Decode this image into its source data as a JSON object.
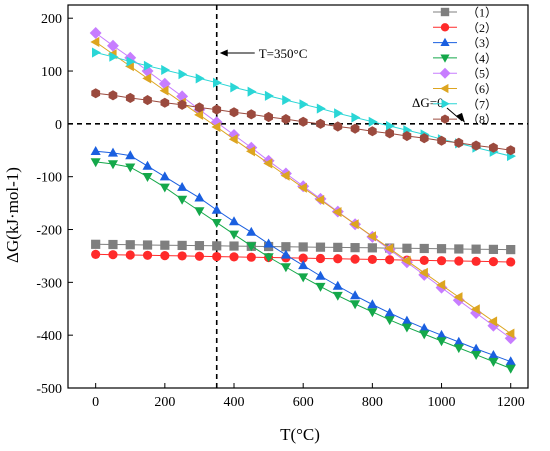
{
  "chart_data": {
    "type": "line",
    "xlabel": "T(°C)",
    "ylabel": "ΔG(kJ·mol-1)",
    "xlim": [
      -80,
      1250
    ],
    "ylim": [
      -500,
      225
    ],
    "xticks": [
      0,
      200,
      400,
      600,
      800,
      1000,
      1200
    ],
    "yticks": [
      -500,
      -400,
      -300,
      -200,
      -100,
      0,
      100,
      200
    ],
    "markers_x": [
      0,
      50,
      100,
      150,
      200,
      250,
      300,
      350,
      400,
      450,
      500,
      550,
      600,
      650,
      700,
      750,
      800,
      850,
      900,
      950,
      1000,
      1050,
      1100,
      1150,
      1200
    ],
    "reference_lines": [
      {
        "axis": "x",
        "value": 350,
        "label": "T=350°C",
        "style": "dashed"
      },
      {
        "axis": "y",
        "value": 0,
        "label": "ΔG=0",
        "style": "dashed"
      }
    ],
    "legend_position": "top-right",
    "series": [
      {
        "name": "（1）",
        "color": "#7f7f7f",
        "marker": "square",
        "values": [
          -228,
          -228.4,
          -228.8,
          -229.3,
          -229.7,
          -230.1,
          -230.5,
          -230.9,
          -231.3,
          -231.8,
          -232.2,
          -232.6,
          -233,
          -233.4,
          -233.8,
          -234.3,
          -234.7,
          -235.1,
          -235.5,
          -235.9,
          -236.3,
          -236.8,
          -237.2,
          -237.6,
          -238
        ]
      },
      {
        "name": "（2）",
        "color": "#ff2a2a",
        "marker": "circle",
        "values": [
          -247,
          -247.6,
          -248.2,
          -248.8,
          -249.4,
          -250,
          -250.6,
          -251.2,
          -251.8,
          -252.4,
          -253,
          -253.6,
          -254.2,
          -254.8,
          -255.4,
          -256,
          -256.6,
          -257.2,
          -257.8,
          -258.4,
          -259,
          -259.6,
          -260.2,
          -260.8,
          -261.4
        ]
      },
      {
        "name": "（3）",
        "color": "#1a5fe0",
        "marker": "triangle-up",
        "values": [
          -52,
          -55,
          -60,
          -80,
          -100,
          -120,
          -140,
          -163,
          -185,
          -205,
          -227,
          -248,
          -268,
          -288,
          -307,
          -325,
          -342,
          -358,
          -373,
          -387,
          -400,
          -413,
          -426,
          -438,
          -450
        ]
      },
      {
        "name": "（4）",
        "color": "#14a84a",
        "marker": "triangle-down",
        "values": [
          -72,
          -76,
          -82,
          -100,
          -120,
          -143,
          -165,
          -187,
          -209,
          -231,
          -252,
          -271,
          -290,
          -308,
          -325,
          -341,
          -356,
          -371,
          -385,
          -398,
          -411,
          -424,
          -437,
          -450,
          -463
        ]
      },
      {
        "name": "（5）",
        "color": "#c77dff",
        "marker": "diamond",
        "values": [
          172,
          148,
          125,
          100,
          76,
          52,
          27,
          3,
          -21,
          -45,
          -70,
          -94,
          -118,
          -142,
          -166,
          -190,
          -214,
          -238,
          -262,
          -286,
          -310,
          -334,
          -358,
          -382,
          -406
        ]
      },
      {
        "name": "（6）",
        "color": "#dda520",
        "marker": "triangle-left",
        "values": [
          155,
          132,
          109,
          86,
          63,
          40,
          17,
          -6,
          -29,
          -52,
          -75,
          -98,
          -121,
          -144,
          -167,
          -190,
          -213,
          -236,
          -259,
          -282,
          -305,
          -328,
          -351,
          -374,
          -397
        ]
      },
      {
        "name": "（7）",
        "color": "#2ad6d6",
        "marker": "triangle-right",
        "values": [
          135,
          127,
          118,
          110,
          102,
          94,
          86,
          78,
          69,
          61,
          53,
          45,
          37,
          29,
          20,
          12,
          4,
          -4,
          -12,
          -20,
          -29,
          -37,
          -45,
          -53,
          -61
        ]
      },
      {
        "name": "（8）",
        "color": "#9b4a3e",
        "marker": "hexagon",
        "values": [
          58,
          54,
          49,
          45,
          40,
          36,
          31,
          27,
          22,
          18,
          13,
          9,
          4,
          0,
          -5,
          -9,
          -14,
          -18,
          -23,
          -27,
          -32,
          -36,
          -41,
          -45,
          -50
        ]
      }
    ]
  }
}
